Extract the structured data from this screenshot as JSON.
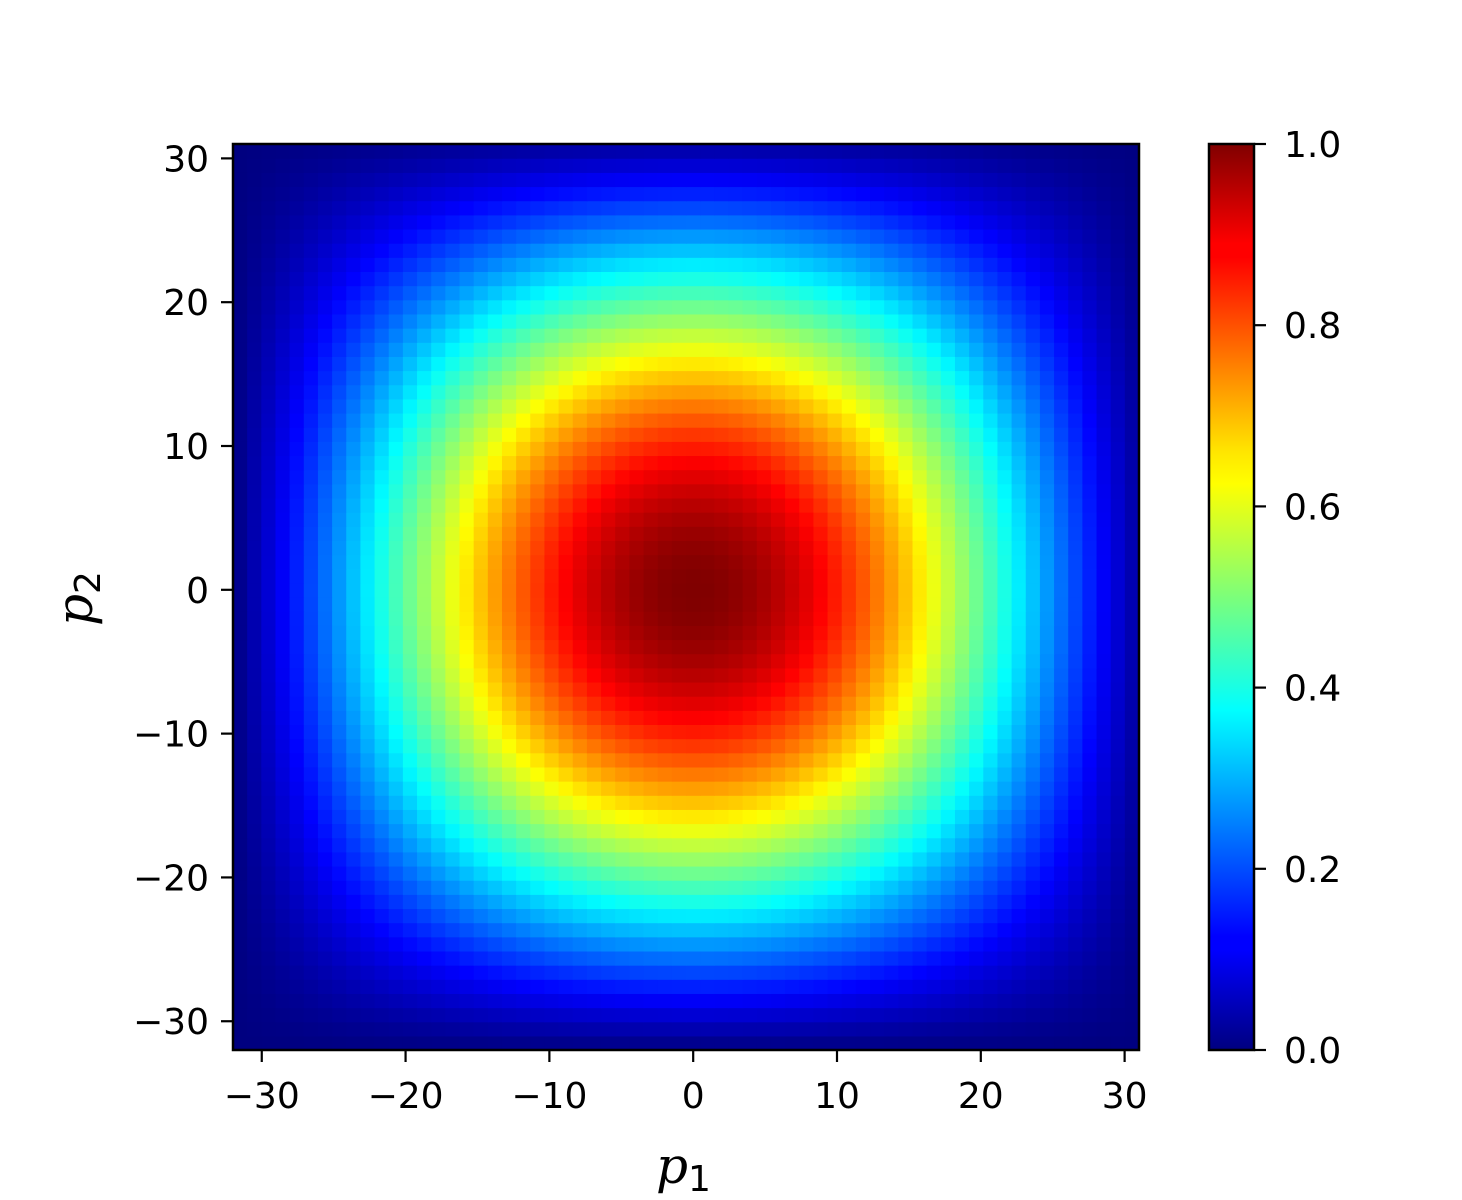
{
  "chart_data": {
    "type": "heatmap",
    "title": "",
    "xlabel": {
      "base": "p",
      "sub": "1"
    },
    "ylabel": {
      "base": "p",
      "sub": "2"
    },
    "xlim": [
      -32,
      31
    ],
    "ylim": [
      -32,
      31
    ],
    "grid_size": 64,
    "x_ticks": [
      -30,
      -20,
      -10,
      0,
      10,
      20,
      30
    ],
    "x_tick_labels": [
      "−30",
      "−20",
      "−10",
      "0",
      "10",
      "20",
      "30"
    ],
    "y_ticks": [
      -30,
      -20,
      -10,
      0,
      10,
      20,
      30
    ],
    "y_tick_labels": [
      "−30",
      "−20",
      "−10",
      "0",
      "10",
      "20",
      "30"
    ],
    "colormap": "jet",
    "colorbar": {
      "range": [
        0.0,
        1.0
      ],
      "ticks": [
        0.0,
        0.2,
        0.4,
        0.6,
        0.8,
        1.0
      ],
      "tick_labels": [
        "0.0",
        "0.2",
        "0.4",
        "0.6",
        "0.8",
        "1.0"
      ]
    },
    "peak": {
      "x": 0,
      "y": 0,
      "value": 1.0
    },
    "grid": false
  }
}
